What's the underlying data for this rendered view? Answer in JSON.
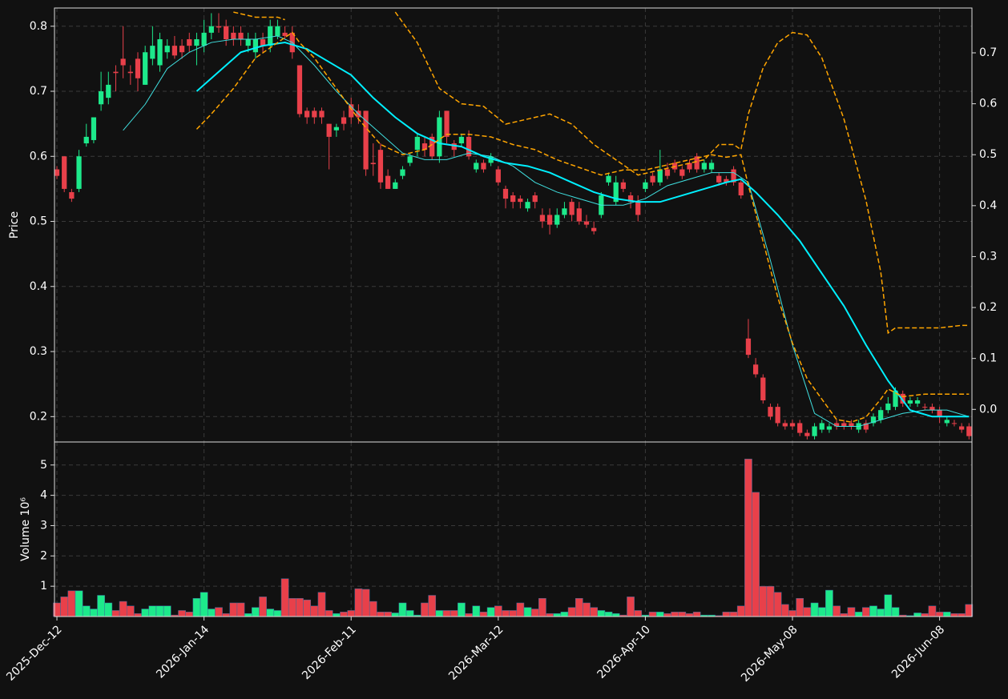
{
  "chart_data": [
    {
      "type": "candlestick",
      "ylabel": "Price",
      "up_color": "#1de98b",
      "down_color": "#e8404a",
      "xlim": [
        -0.33,
        124.4
      ],
      "xticks": [
        {
          "value": 0,
          "label": "2025-Dec-12"
        },
        {
          "value": 20,
          "label": "2026-Jan-14"
        },
        {
          "value": 40,
          "label": "2026-Feb-11"
        },
        {
          "value": 60,
          "label": "2026-Mar-12"
        },
        {
          "value": 80,
          "label": "2026-Apr-10"
        },
        {
          "value": 100,
          "label": "2026-May-08"
        },
        {
          "value": 120,
          "label": "2026-Jun-08"
        }
      ],
      "ylim": [
        0.161,
        0.828
      ],
      "yticks": [
        0.2,
        0.3,
        0.4,
        0.5,
        0.6,
        0.7,
        0.8
      ],
      "y2lim": [
        -0.064,
        0.788
      ],
      "y2ticks": [
        {
          "value": 0,
          "label": "0.0"
        },
        0.1,
        0.2,
        0.3,
        0.4,
        0.5,
        0.6,
        0.7
      ],
      "grid": true,
      "open": [
        0.58,
        0.6,
        0.545,
        0.55,
        0.62,
        0.625,
        0.68,
        0.69,
        0.73,
        0.75,
        0.73,
        0.75,
        0.71,
        0.75,
        0.74,
        0.76,
        0.77,
        0.77,
        0.78,
        0.77,
        0.77,
        0.79,
        0.8,
        0.8,
        0.79,
        0.79,
        0.77,
        0.76,
        0.78,
        0.77,
        0.785,
        0.79,
        0.79,
        0.74,
        0.67,
        0.67,
        0.67,
        0.65,
        0.64,
        0.66,
        0.68,
        0.67,
        0.67,
        0.59,
        0.61,
        0.57,
        0.55,
        0.57,
        0.59,
        0.61,
        0.62,
        0.63,
        0.6,
        0.67,
        0.62,
        0.62,
        0.63,
        0.58,
        0.59,
        0.59,
        0.58,
        0.55,
        0.54,
        0.535,
        0.52,
        0.54,
        0.51,
        0.51,
        0.495,
        0.51,
        0.53,
        0.52,
        0.5,
        0.49,
        0.51,
        0.56,
        0.53,
        0.56,
        0.54,
        0.53,
        0.55,
        0.57,
        0.56,
        0.58,
        0.59,
        0.58,
        0.59,
        0.6,
        0.58,
        0.58,
        0.57,
        0.565,
        0.58,
        0.56,
        0.32,
        0.28,
        0.26,
        0.215,
        0.215,
        0.19,
        0.19,
        0.19,
        0.175,
        0.17,
        0.18,
        0.18,
        0.19,
        0.19,
        0.19,
        0.18,
        0.19,
        0.19,
        0.195,
        0.21,
        0.215,
        0.235,
        0.22,
        0.22,
        0.215,
        0.215,
        0.21,
        0.19,
        0.19,
        0.185,
        0.185
      ],
      "high": [
        0.585,
        0.6,
        0.55,
        0.61,
        0.65,
        0.66,
        0.73,
        0.73,
        0.74,
        0.8,
        0.74,
        0.76,
        0.77,
        0.8,
        0.79,
        0.78,
        0.785,
        0.78,
        0.79,
        0.79,
        0.81,
        0.82,
        0.82,
        0.81,
        0.8,
        0.8,
        0.79,
        0.79,
        0.79,
        0.81,
        0.81,
        0.8,
        0.8,
        0.74,
        0.675,
        0.675,
        0.675,
        0.65,
        0.65,
        0.67,
        0.69,
        0.68,
        0.67,
        0.62,
        0.62,
        0.58,
        0.565,
        0.585,
        0.605,
        0.635,
        0.63,
        0.635,
        0.67,
        0.67,
        0.625,
        0.635,
        0.64,
        0.595,
        0.595,
        0.605,
        0.585,
        0.555,
        0.545,
        0.54,
        0.535,
        0.545,
        0.52,
        0.52,
        0.52,
        0.53,
        0.535,
        0.53,
        0.51,
        0.5,
        0.545,
        0.575,
        0.57,
        0.565,
        0.545,
        0.54,
        0.565,
        0.575,
        0.61,
        0.59,
        0.595,
        0.585,
        0.595,
        0.605,
        0.595,
        0.595,
        0.575,
        0.57,
        0.585,
        0.565,
        0.35,
        0.29,
        0.265,
        0.22,
        0.22,
        0.195,
        0.195,
        0.195,
        0.18,
        0.19,
        0.195,
        0.19,
        0.195,
        0.195,
        0.195,
        0.195,
        0.195,
        0.205,
        0.215,
        0.23,
        0.245,
        0.24,
        0.23,
        0.23,
        0.22,
        0.22,
        0.215,
        0.2,
        0.195,
        0.19,
        0.19
      ],
      "low": [
        0.565,
        0.545,
        0.53,
        0.545,
        0.615,
        0.62,
        0.67,
        0.68,
        0.7,
        0.72,
        0.71,
        0.7,
        0.71,
        0.74,
        0.73,
        0.75,
        0.75,
        0.75,
        0.76,
        0.74,
        0.76,
        0.78,
        0.79,
        0.77,
        0.77,
        0.77,
        0.76,
        0.75,
        0.76,
        0.76,
        0.78,
        0.78,
        0.75,
        0.66,
        0.65,
        0.65,
        0.65,
        0.58,
        0.63,
        0.64,
        0.65,
        0.65,
        0.57,
        0.57,
        0.55,
        0.55,
        0.55,
        0.565,
        0.585,
        0.6,
        0.6,
        0.595,
        0.59,
        0.62,
        0.6,
        0.615,
        0.595,
        0.575,
        0.575,
        0.585,
        0.555,
        0.52,
        0.52,
        0.52,
        0.515,
        0.52,
        0.49,
        0.48,
        0.49,
        0.505,
        0.5,
        0.495,
        0.49,
        0.48,
        0.505,
        0.555,
        0.525,
        0.545,
        0.52,
        0.5,
        0.545,
        0.555,
        0.555,
        0.565,
        0.575,
        0.565,
        0.575,
        0.575,
        0.575,
        0.575,
        0.555,
        0.555,
        0.555,
        0.535,
        0.29,
        0.26,
        0.22,
        0.195,
        0.185,
        0.18,
        0.18,
        0.17,
        0.165,
        0.165,
        0.175,
        0.175,
        0.18,
        0.18,
        0.18,
        0.175,
        0.175,
        0.185,
        0.19,
        0.205,
        0.21,
        0.215,
        0.215,
        0.215,
        0.21,
        0.205,
        0.19,
        0.185,
        0.185,
        0.175,
        0.165
      ],
      "close": [
        0.57,
        0.55,
        0.535,
        0.6,
        0.63,
        0.66,
        0.7,
        0.71,
        0.728,
        0.74,
        0.728,
        0.72,
        0.76,
        0.77,
        0.78,
        0.77,
        0.755,
        0.76,
        0.77,
        0.78,
        0.79,
        0.8,
        0.798,
        0.78,
        0.78,
        0.78,
        0.78,
        0.78,
        0.77,
        0.8,
        0.8,
        0.785,
        0.76,
        0.665,
        0.66,
        0.66,
        0.66,
        0.63,
        0.645,
        0.65,
        0.66,
        0.66,
        0.58,
        0.588,
        0.56,
        0.55,
        0.56,
        0.58,
        0.6,
        0.63,
        0.61,
        0.6,
        0.66,
        0.63,
        0.61,
        0.63,
        0.6,
        0.59,
        0.58,
        0.6,
        0.56,
        0.535,
        0.53,
        0.53,
        0.53,
        0.53,
        0.5,
        0.495,
        0.51,
        0.52,
        0.51,
        0.5,
        0.495,
        0.485,
        0.54,
        0.57,
        0.56,
        0.55,
        0.53,
        0.51,
        0.56,
        0.56,
        0.58,
        0.57,
        0.58,
        0.57,
        0.58,
        0.58,
        0.59,
        0.59,
        0.56,
        0.56,
        0.56,
        0.54,
        0.295,
        0.265,
        0.225,
        0.2,
        0.19,
        0.185,
        0.185,
        0.175,
        0.17,
        0.185,
        0.19,
        0.185,
        0.185,
        0.185,
        0.185,
        0.19,
        0.18,
        0.2,
        0.21,
        0.22,
        0.24,
        0.22,
        0.225,
        0.225,
        0.214,
        0.21,
        0.2,
        0.195,
        0.189,
        0.18,
        0.17
      ],
      "series": [
        {
          "color": "#40e0e0",
          "linewidth": 1,
          "x": [
            9,
            12,
            15,
            18,
            21,
            24,
            27,
            30,
            32,
            35,
            38,
            41,
            44,
            47,
            50,
            53,
            56,
            59,
            62,
            65,
            68,
            71,
            74,
            77,
            80,
            83,
            86,
            89,
            92,
            94,
            97,
            100,
            103,
            106,
            109,
            112,
            115,
            118,
            121,
            124
          ],
          "values": [
            0.64,
            0.68,
            0.735,
            0.76,
            0.775,
            0.78,
            0.78,
            0.785,
            0.775,
            0.74,
            0.7,
            0.665,
            0.635,
            0.605,
            0.595,
            0.595,
            0.605,
            0.6,
            0.585,
            0.56,
            0.545,
            0.535,
            0.525,
            0.525,
            0.535,
            0.555,
            0.565,
            0.575,
            0.575,
            0.56,
            0.44,
            0.31,
            0.205,
            0.185,
            0.185,
            0.195,
            0.205,
            0.21,
            0.21,
            0.2
          ]
        },
        {
          "color": "#00f0ff",
          "linewidth": 2,
          "x": [
            19,
            22,
            25,
            28,
            31,
            34,
            37,
            40,
            43,
            46,
            49,
            52,
            55,
            58,
            61,
            64,
            67,
            70,
            73,
            76,
            79,
            82,
            85,
            88,
            91,
            93,
            95,
            98,
            101,
            104,
            107,
            110,
            113,
            116,
            119,
            122,
            124
          ],
          "values": [
            0.7,
            0.73,
            0.76,
            0.77,
            0.775,
            0.765,
            0.745,
            0.725,
            0.69,
            0.66,
            0.635,
            0.62,
            0.615,
            0.6,
            0.59,
            0.585,
            0.575,
            0.56,
            0.545,
            0.535,
            0.53,
            0.53,
            0.54,
            0.55,
            0.56,
            0.565,
            0.545,
            0.51,
            0.47,
            0.42,
            0.37,
            0.31,
            0.255,
            0.21,
            0.2,
            0.2,
            0.2
          ]
        },
        {
          "color": "#ffa500",
          "linewidth": 1.5,
          "dashed": true,
          "axis": "y2",
          "x": [
            24,
            27,
            30,
            31,
            40,
            46,
            49,
            52,
            55,
            58,
            61,
            64,
            67,
            70,
            73,
            76,
            79,
            82,
            85,
            88,
            90,
            92,
            93,
            94,
            96,
            98,
            100,
            102,
            104,
            105,
            107,
            110,
            112,
            113,
            114,
            117,
            120,
            123,
            124
          ],
          "values": [
            0.78,
            0.77,
            0.77,
            0.765,
            null,
            0.78,
            0.72,
            0.63,
            0.6,
            0.595,
            0.56,
            0.57,
            0.58,
            0.56,
            0.52,
            0.49,
            0.46,
            0.47,
            0.48,
            0.49,
            0.52,
            0.52,
            0.51,
            0.58,
            0.67,
            0.72,
            0.74,
            0.735,
            0.69,
            0.65,
            0.57,
            0.41,
            0.27,
            0.15,
            0.16,
            0.16,
            0.16,
            0.165,
            0.165
          ]
        },
        {
          "color": "#ffa500",
          "linewidth": 1.5,
          "dashed": true,
          "axis": "y2",
          "x": [
            19,
            21,
            24,
            27,
            30,
            32,
            33,
            35,
            38,
            41,
            44,
            47,
            50,
            53,
            56,
            59,
            62,
            65,
            68,
            71,
            74,
            77,
            80,
            83,
            86,
            89,
            91,
            93,
            94,
            96,
            98,
            100,
            102,
            104,
            106,
            108,
            110,
            112,
            113,
            115,
            118,
            121,
            124
          ],
          "values": [
            0.55,
            0.58,
            0.63,
            0.69,
            0.72,
            0.74,
            0.72,
            0.69,
            0.63,
            0.57,
            0.52,
            0.5,
            0.51,
            0.54,
            0.54,
            0.535,
            0.52,
            0.51,
            0.49,
            0.475,
            0.46,
            0.47,
            0.47,
            0.48,
            0.49,
            0.5,
            0.495,
            0.5,
            0.44,
            0.33,
            0.22,
            0.13,
            0.06,
            0.02,
            -0.02,
            -0.025,
            -0.015,
            0.02,
            0.04,
            0.025,
            0.03,
            0.03,
            0.03
          ]
        }
      ]
    },
    {
      "type": "bar",
      "ylabel": "Volume  10⁶",
      "ylim": [
        0,
        5.76
      ],
      "yticks": [
        1,
        2,
        3,
        4,
        5
      ],
      "values": [
        0.45,
        0.65,
        0.85,
        0.85,
        0.35,
        0.25,
        0.7,
        0.45,
        0.2,
        0.5,
        0.35,
        0.1,
        0.25,
        0.35,
        0.35,
        0.35,
        0.05,
        0.2,
        0.15,
        0.6,
        0.8,
        0.25,
        0.3,
        0.1,
        0.45,
        0.45,
        0.1,
        0.3,
        0.65,
        0.25,
        0.2,
        1.25,
        0.6,
        0.6,
        0.55,
        0.35,
        0.8,
        0.2,
        0.1,
        0.15,
        0.2,
        0.92,
        0.9,
        0.5,
        0.15,
        0.15,
        0.12,
        0.45,
        0.2,
        0.05,
        0.45,
        0.7,
        0.2,
        0.2,
        0.2,
        0.45,
        0.1,
        0.35,
        0.15,
        0.3,
        0.35,
        0.2,
        0.2,
        0.45,
        0.3,
        0.25,
        0.6,
        0.1,
        0.1,
        0.15,
        0.3,
        0.6,
        0.45,
        0.3,
        0.2,
        0.15,
        0.1,
        0.05,
        0.65,
        0.2,
        0.05,
        0.15,
        0.15,
        0.1,
        0.15,
        0.15,
        0.1,
        0.15,
        0.05,
        0.05,
        0.03,
        0.15,
        0.15,
        0.35,
        5.2,
        4.1,
        1.0,
        1.0,
        0.8,
        0.4,
        0.2,
        0.6,
        0.3,
        0.45,
        0.3,
        0.87,
        0.35,
        0.1,
        0.3,
        0.15,
        0.3,
        0.35,
        0.25,
        0.72,
        0.3,
        0.05,
        0.03,
        0.12,
        0.1,
        0.35,
        0.15,
        0.15,
        0.1,
        0.1,
        0.4
      ]
    }
  ]
}
